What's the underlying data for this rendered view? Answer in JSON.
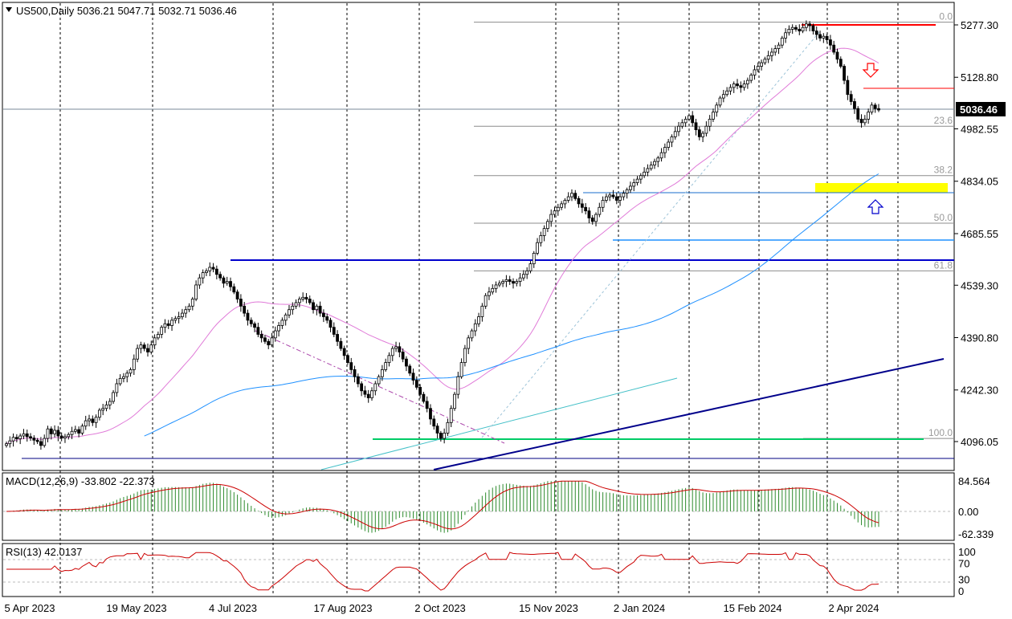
{
  "header": {
    "title": "US500,Daily  5036.21 5047.71 5032.71 5036.46"
  },
  "chart_data": {
    "type": "candlestick",
    "symbol": "US500",
    "timeframe": "Daily",
    "ohlc_last": {
      "open": 5036.21,
      "high": 5047.71,
      "low": 5032.71,
      "close": 5036.46
    },
    "current_price_label": "5036.46",
    "price_axis_ticks": [
      "5277.30",
      "5128.80",
      "4982.55",
      "4834.05",
      "4685.55",
      "4539.30",
      "4390.80",
      "4242.30",
      "4096.05"
    ],
    "price_axis_values": [
      5277.3,
      5128.8,
      4982.55,
      4834.05,
      4685.55,
      4539.3,
      4390.8,
      4242.3,
      4096.05
    ],
    "ylim": [
      4015,
      5300
    ],
    "date_labels": [
      "5 Apr 2023",
      "19 May 2023",
      "4 Jul 2023",
      "17 Aug 2023",
      "2 Oct 2023",
      "15 Nov 2023",
      "2 Jan 2024",
      "15 Feb 2024",
      "2 Apr 2024"
    ],
    "fibonacci": [
      {
        "level": "0.0",
        "price": 5285
      },
      {
        "level": "23.6",
        "price": 4990
      },
      {
        "level": "38.2",
        "price": 4850
      },
      {
        "level": "50.0",
        "price": 4715
      },
      {
        "level": "61.8",
        "price": 4580
      },
      {
        "level": "100.0",
        "price": 4105
      }
    ],
    "close_series": [
      4090,
      4098,
      4108,
      4104,
      4112,
      4118,
      4110,
      4106,
      4100,
      4096,
      4085,
      4105,
      4132,
      4118,
      4128,
      4112,
      4106,
      4110,
      4116,
      4125,
      4130,
      4120,
      4140,
      4155,
      4160,
      4150,
      4165,
      4185,
      4190,
      4200,
      4210,
      4235,
      4260,
      4275,
      4280,
      4290,
      4300,
      4330,
      4360,
      4370,
      4360,
      4350,
      4370,
      4390,
      4400,
      4420,
      4430,
      4425,
      4440,
      4445,
      4450,
      4460,
      4470,
      4480,
      4500,
      4540,
      4560,
      4575,
      4580,
      4590,
      4585,
      4570,
      4560,
      4545,
      4550,
      4535,
      4520,
      4500,
      4480,
      4460,
      4440,
      4430,
      4420,
      4400,
      4390,
      4380,
      4370,
      4390,
      4410,
      4425,
      4440,
      4455,
      4470,
      4480,
      4490,
      4500,
      4505,
      4500,
      4490,
      4470,
      4480,
      4460,
      4450,
      4440,
      4420,
      4400,
      4380,
      4360,
      4340,
      4320,
      4300,
      4280,
      4260,
      4240,
      4230,
      4220,
      4240,
      4260,
      4280,
      4300,
      4320,
      4340,
      4360,
      4365,
      4350,
      4330,
      4310,
      4290,
      4270,
      4250,
      4230,
      4210,
      4190,
      4160,
      4140,
      4120,
      4105,
      4120,
      4150,
      4190,
      4230,
      4280,
      4320,
      4360,
      4390,
      4410,
      4430,
      4450,
      4480,
      4510,
      4520,
      4530,
      4540,
      4545,
      4550,
      4555,
      4550,
      4545,
      4550,
      4560,
      4570,
      4580,
      4600,
      4630,
      4660,
      4680,
      4700,
      4720,
      4740,
      4750,
      4760,
      4770,
      4780,
      4790,
      4800,
      4785,
      4770,
      4760,
      4750,
      4730,
      4720,
      4740,
      4760,
      4780,
      4790,
      4795,
      4790,
      4780,
      4790,
      4800,
      4810,
      4820,
      4830,
      4840,
      4850,
      4860,
      4870,
      4880,
      4890,
      4900,
      4915,
      4930,
      4945,
      4960,
      4975,
      4990,
      5000,
      5010,
      5020,
      5000,
      4980,
      4960,
      4970,
      4990,
      5010,
      5030,
      5050,
      5070,
      5080,
      5090,
      5100,
      5110,
      5105,
      5100,
      5110,
      5120,
      5135,
      5150,
      5160,
      5170,
      5180,
      5190,
      5200,
      5210,
      5220,
      5240,
      5255,
      5265,
      5270,
      5265,
      5260,
      5270,
      5280,
      5275,
      5260,
      5250,
      5240,
      5245,
      5235,
      5220,
      5200,
      5180,
      5160,
      5120,
      5080,
      5060,
      5040,
      5010,
      5000,
      5010,
      5030,
      5050,
      5040,
      5036
    ],
    "ma_fast": {
      "name": "",
      "color": "#e07ad8"
    },
    "ma_slow": {
      "name": "",
      "color": "#1e90ff"
    },
    "macd": {
      "label": "MACD(12,26,9) -33.802 -22.373",
      "ticks": [
        "84.564",
        "0.00",
        "-62.339"
      ],
      "tick_values": [
        84.564,
        0,
        -62.339
      ]
    },
    "rsi": {
      "label": "RSI(13) 42.0137",
      "ticks": [
        "100",
        "70",
        "30",
        "0"
      ],
      "tick_values": [
        100,
        70,
        30,
        0
      ]
    },
    "colors": {
      "candle": "#000000",
      "up_fill": "#ffffff",
      "macd_hist": "#2e8b2e",
      "macd_signal": "#cc0000",
      "rsi_line": "#cc0000",
      "trend_blue": "#0000cc",
      "trend_dark": "#000080",
      "fib_line": "#8c8c8c",
      "resistance": "#ff0000",
      "support_zone": "#ffff00",
      "green_line": "#00cc66",
      "cyan_line": "#44c0c8"
    }
  }
}
